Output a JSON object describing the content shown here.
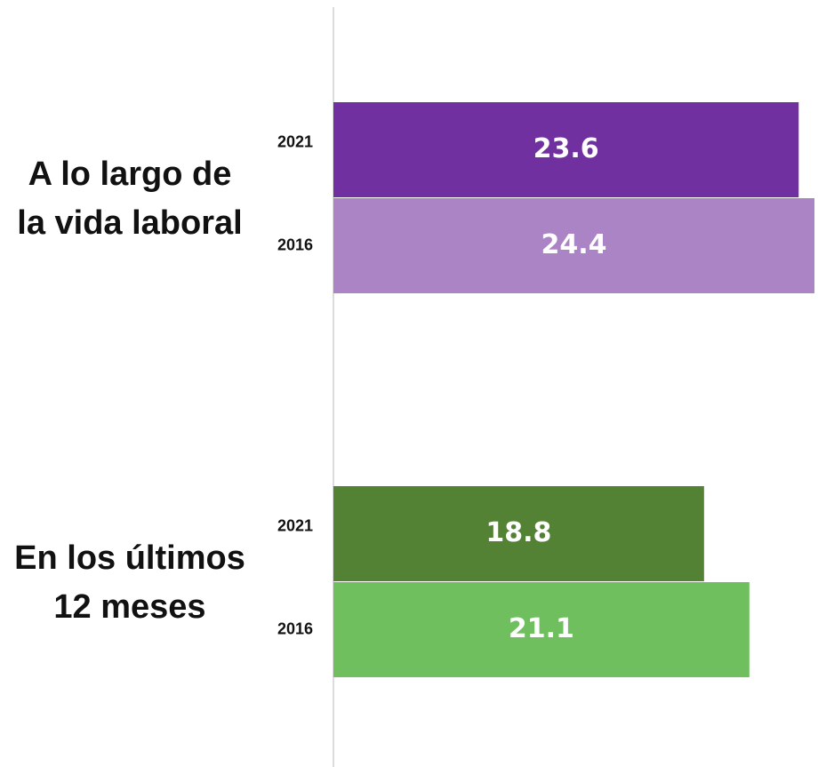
{
  "chart_data": {
    "type": "bar",
    "orientation": "horizontal",
    "categories": [
      "A lo largo de la vida laboral",
      "En los últimos 12 meses"
    ],
    "series": [
      {
        "name": "2021",
        "colors": [
          "#7030a0",
          "#548235"
        ],
        "values": [
          23.6,
          18.8
        ]
      },
      {
        "name": "2016",
        "colors": [
          "#ab84c6",
          "#70bf5f"
        ],
        "values": [
          24.4,
          21.1
        ]
      }
    ]
  }
}
